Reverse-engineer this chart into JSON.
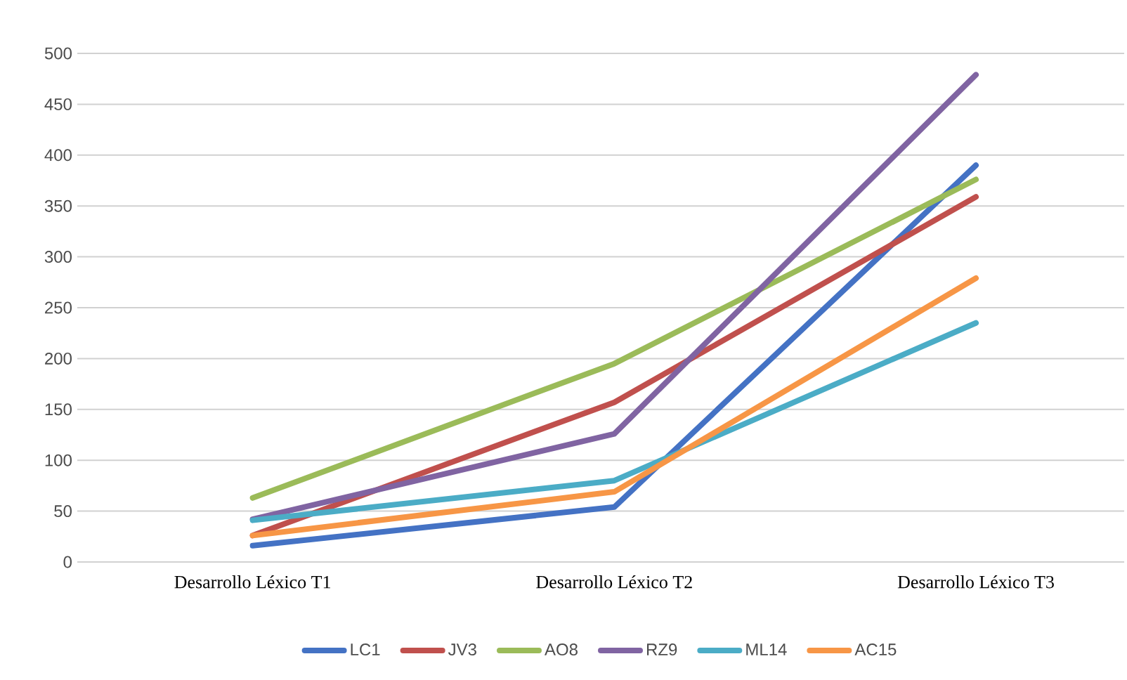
{
  "chart_data": {
    "type": "line",
    "categories": [
      "Desarrollo Léxico T1",
      "Desarrollo Léxico T2",
      "Desarrollo Léxico T3"
    ],
    "series": [
      {
        "name": "LC1",
        "color": "#4472c4",
        "values": [
          16,
          54,
          390
        ]
      },
      {
        "name": "JV3",
        "color": "#c0504d",
        "values": [
          26,
          157,
          359
        ]
      },
      {
        "name": "AO8",
        "color": "#9bbb59",
        "values": [
          63,
          195,
          376
        ]
      },
      {
        "name": "RZ9",
        "color": "#8064a2",
        "values": [
          42,
          126,
          479
        ]
      },
      {
        "name": "ML14",
        "color": "#4bacc6",
        "values": [
          41,
          80,
          235
        ]
      },
      {
        "name": "AC15",
        "color": "#f79646",
        "values": [
          26,
          69,
          279
        ]
      }
    ],
    "ylim": [
      0,
      500
    ],
    "yticks": [
      0,
      50,
      100,
      150,
      200,
      250,
      300,
      350,
      400,
      450,
      500
    ],
    "grid": "y",
    "legend": "bottom",
    "marker": "none",
    "line_style": "solid"
  }
}
